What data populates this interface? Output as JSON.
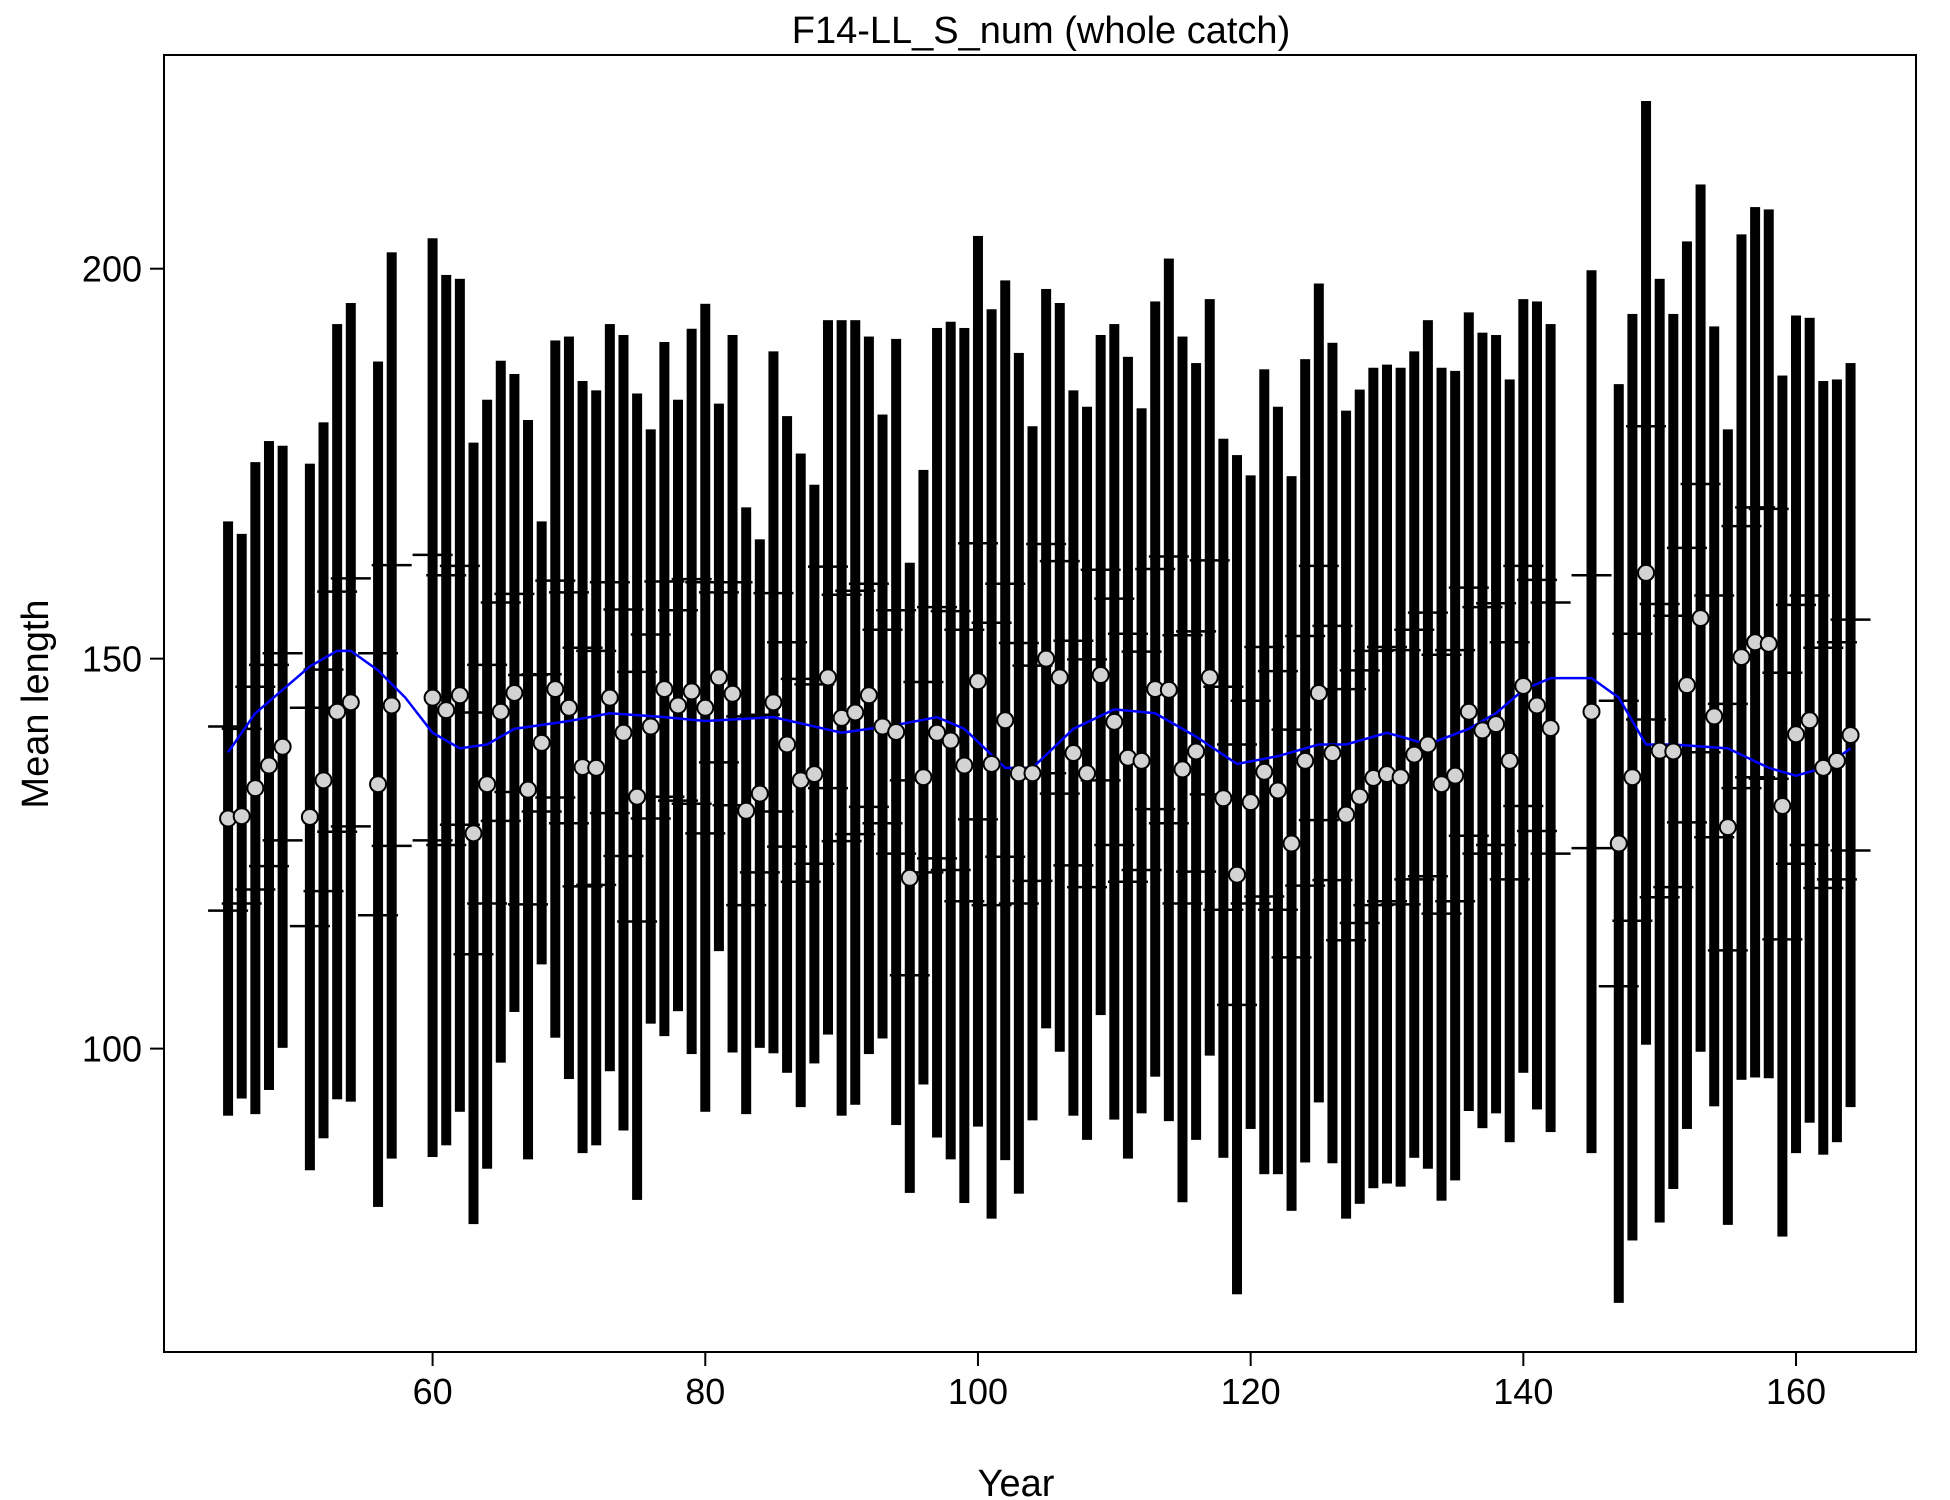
{
  "chart_data": {
    "type": "errorbar",
    "title": "F14-LL_S_num (whole catch)",
    "x_label": "Year",
    "y_label": "Mean length",
    "x": [
      45,
      46,
      47,
      48,
      49,
      51,
      52,
      53,
      54,
      56,
      57,
      60,
      61,
      62,
      63,
      64,
      65,
      66,
      67,
      68,
      69,
      70,
      71,
      72,
      73,
      74,
      75,
      76,
      77,
      78,
      79,
      80,
      81,
      82,
      83,
      84,
      85,
      86,
      87,
      88,
      89,
      90,
      91,
      92,
      93,
      94,
      95,
      96,
      97,
      98,
      99,
      100,
      101,
      102,
      103,
      104,
      105,
      106,
      107,
      108,
      109,
      110,
      111,
      112,
      113,
      114,
      115,
      116,
      117,
      118,
      119,
      120,
      121,
      122,
      123,
      124,
      125,
      126,
      127,
      128,
      129,
      130,
      131,
      132,
      133,
      134,
      135,
      136,
      137,
      138,
      139,
      140,
      141,
      142,
      145,
      147,
      148,
      149,
      150,
      151,
      152,
      153,
      154,
      155,
      156,
      157,
      158,
      159,
      160,
      161,
      162,
      163,
      164
    ],
    "values": [
      129.5,
      129.8,
      133.4,
      136.3,
      138.7,
      129.7,
      134.4,
      143.2,
      144.4,
      133.9,
      144.0,
      145.0,
      143.4,
      145.3,
      127.6,
      133.9,
      143.2,
      145.6,
      133.2,
      139.2,
      146.1,
      143.7,
      136.1,
      136.0,
      145.0,
      140.5,
      132.3,
      141.3,
      146.1,
      144.0,
      145.8,
      143.7,
      147.6,
      145.5,
      130.5,
      132.7,
      144.4,
      139.0,
      134.4,
      135.2,
      147.6,
      142.4,
      143.1,
      145.3,
      141.3,
      140.6,
      121.9,
      134.8,
      140.5,
      139.5,
      136.3,
      147.1,
      136.5,
      142.1,
      135.3,
      135.3,
      150.0,
      147.6,
      137.9,
      135.3,
      147.9,
      141.9,
      137.3,
      136.9,
      146.1,
      146.0,
      135.8,
      138.1,
      147.6,
      132.1,
      122.3,
      131.6,
      135.5,
      133.1,
      126.3,
      136.9,
      145.6,
      137.9,
      130.0,
      132.3,
      134.7,
      135.2,
      134.8,
      137.7,
      139.0,
      133.9,
      135.0,
      143.2,
      140.8,
      141.6,
      136.9,
      146.5,
      144.0,
      141.1,
      143.2,
      126.3,
      134.8,
      161.0,
      138.2,
      138.1,
      146.6,
      155.2,
      142.6,
      128.4,
      150.2,
      152.1,
      151.9,
      131.1,
      140.3,
      142.1,
      136.0,
      136.9,
      140.2
    ],
    "upper": [
      167.6,
      166.0,
      175.2,
      177.9,
      177.3,
      175.0,
      180.3,
      192.9,
      195.6,
      188.1,
      202.1,
      203.9,
      199.2,
      198.7,
      177.7,
      183.2,
      188.2,
      186.5,
      180.6,
      167.6,
      190.8,
      191.3,
      185.6,
      184.4,
      192.9,
      191.5,
      184.0,
      179.4,
      190.6,
      183.2,
      192.3,
      195.5,
      182.7,
      191.5,
      169.4,
      165.3,
      189.4,
      181.1,
      176.3,
      172.3,
      193.4,
      193.4,
      193.4,
      191.3,
      181.3,
      191.0,
      162.3,
      174.2,
      192.4,
      193.2,
      192.4,
      204.2,
      194.8,
      198.5,
      189.2,
      179.8,
      197.4,
      195.6,
      184.4,
      182.3,
      191.5,
      192.9,
      188.7,
      182.1,
      195.8,
      201.3,
      191.3,
      187.9,
      196.1,
      178.2,
      176.1,
      173.5,
      187.1,
      182.3,
      173.4,
      188.4,
      198.1,
      190.5,
      181.8,
      184.5,
      187.3,
      187.7,
      187.3,
      189.4,
      193.4,
      187.3,
      186.9,
      194.4,
      191.8,
      191.5,
      185.8,
      196.1,
      195.8,
      192.9,
      199.8,
      185.2,
      194.2,
      221.5,
      198.7,
      194.2,
      203.5,
      210.8,
      192.6,
      179.4,
      204.4,
      207.9,
      207.6,
      186.3,
      194.0,
      193.7,
      185.6,
      185.8,
      187.9
    ],
    "lower": [
      91.4,
      93.6,
      91.6,
      94.7,
      100.1,
      84.4,
      88.5,
      93.5,
      93.2,
      79.7,
      85.9,
      86.1,
      87.6,
      91.9,
      77.5,
      84.6,
      98.2,
      104.7,
      85.8,
      110.8,
      101.4,
      96.1,
      86.6,
      87.6,
      97.1,
      89.5,
      80.6,
      103.2,
      101.6,
      104.8,
      99.3,
      91.9,
      112.5,
      99.5,
      91.6,
      100.1,
      99.4,
      96.9,
      92.5,
      98.1,
      101.8,
      91.4,
      92.8,
      99.3,
      101.3,
      90.2,
      81.5,
      95.4,
      88.6,
      85.8,
      80.2,
      90.0,
      78.2,
      85.7,
      81.4,
      90.8,
      102.6,
      99.6,
      91.4,
      88.3,
      104.3,
      90.9,
      85.9,
      91.7,
      96.4,
      90.7,
      80.3,
      88.3,
      99.1,
      86.0,
      68.5,
      89.7,
      83.9,
      83.9,
      79.2,
      85.4,
      93.1,
      85.3,
      78.2,
      80.1,
      82.1,
      82.7,
      82.3,
      86.0,
      84.6,
      80.5,
      83.1,
      92.0,
      89.8,
      91.7,
      88.0,
      96.9,
      92.2,
      89.3,
      86.6,
      67.4,
      75.4,
      100.5,
      77.7,
      82.0,
      89.7,
      99.6,
      92.6,
      77.4,
      96.0,
      96.3,
      96.2,
      75.9,
      86.6,
      90.5,
      86.4,
      88.0,
      92.5
    ],
    "inner_upper": [
      141.3,
      141.0,
      146.4,
      149.2,
      150.7,
      143.7,
      148.6,
      158.6,
      160.3,
      150.7,
      162.0,
      163.3,
      160.7,
      161.9,
      143.1,
      149.2,
      157.2,
      158.3,
      147.9,
      148.0,
      160.0,
      158.5,
      151.4,
      151.0,
      159.8,
      156.3,
      148.3,
      153.1,
      159.9,
      156.2,
      160.2,
      159.8,
      158.5,
      159.8,
      142.6,
      142.8,
      158.4,
      152.1,
      147.4,
      146.7,
      161.8,
      158.2,
      158.7,
      159.6,
      153.7,
      156.2,
      134.4,
      147.0,
      156.6,
      156.1,
      153.7,
      164.8,
      154.6,
      159.6,
      152.0,
      149.1,
      164.7,
      162.5,
      152.3,
      149.9,
      161.4,
      157.7,
      153.2,
      150.9,
      161.5,
      163.1,
      153.0,
      153.5,
      162.6,
      146.4,
      139.0,
      144.6,
      151.5,
      148.4,
      140.9,
      152.9,
      161.9,
      154.2,
      146.1,
      148.5,
      151.0,
      151.5,
      151.1,
      153.7,
      155.9,
      150.5,
      151.1,
      159.1,
      156.6,
      157.1,
      152.1,
      161.9,
      160.1,
      157.2,
      160.7,
      144.6,
      153.2,
      179.8,
      157.0,
      155.5,
      164.2,
      172.4,
      158.1,
      144.2,
      167.0,
      169.4,
      169.2,
      148.2,
      156.9,
      158.1,
      151.4,
      152.1,
      155.0
    ],
    "inner_lower": [
      117.7,
      118.6,
      120.4,
      123.4,
      126.7,
      115.7,
      120.2,
      127.8,
      128.5,
      117.1,
      126.0,
      126.7,
      126.1,
      128.7,
      112.1,
      118.6,
      129.2,
      132.9,
      118.5,
      130.4,
      132.2,
      128.9,
      120.8,
      121.0,
      130.2,
      124.7,
      116.3,
      129.5,
      132.3,
      131.8,
      131.4,
      127.6,
      136.7,
      131.2,
      118.4,
      122.6,
      130.4,
      125.9,
      121.4,
      123.7,
      133.4,
      126.6,
      127.5,
      131.0,
      128.9,
      125.0,
      109.4,
      122.6,
      124.4,
      122.9,
      118.9,
      129.4,
      118.4,
      124.6,
      118.6,
      121.5,
      135.3,
      132.7,
      123.5,
      120.7,
      134.4,
      126.1,
      121.4,
      122.9,
      130.7,
      128.9,
      118.6,
      122.7,
      132.6,
      117.8,
      105.6,
      118.6,
      119.5,
      117.8,
      111.7,
      120.9,
      129.3,
      121.6,
      113.9,
      116.1,
      118.4,
      118.9,
      118.5,
      121.7,
      122.1,
      117.3,
      118.9,
      127.3,
      125.0,
      126.1,
      121.7,
      131.1,
      127.9,
      125.0,
      125.7,
      108.0,
      116.4,
      142.2,
      119.4,
      120.7,
      129.0,
      138.0,
      127.1,
      112.6,
      133.4,
      134.8,
      134.6,
      114.0,
      123.7,
      126.1,
      120.6,
      121.7,
      125.4
    ],
    "bar_color": "#000000",
    "point_color": "#d3d3d3",
    "smoother": {
      "x": [
        45,
        47,
        49,
        51,
        53,
        54,
        56,
        58,
        60,
        62,
        64,
        66,
        70,
        73,
        77,
        80,
        85,
        90,
        94,
        97,
        99,
        102,
        104,
        107,
        110,
        113,
        116,
        119,
        122,
        125,
        127,
        130,
        133,
        136,
        138,
        140,
        142,
        145,
        147,
        149,
        151,
        155,
        158,
        160,
        162,
        164
      ],
      "values": [
        138.0,
        143.0,
        146.0,
        149.0,
        151.0,
        151.0,
        148.5,
        145.0,
        140.5,
        138.5,
        139.0,
        141.0,
        142.0,
        143.0,
        142.5,
        142.0,
        142.5,
        140.5,
        141.5,
        142.5,
        141.0,
        136.0,
        136.0,
        141.0,
        143.5,
        143.0,
        140.0,
        136.5,
        137.5,
        139.0,
        139.0,
        140.5,
        139.0,
        141.0,
        143.0,
        146.0,
        147.5,
        147.5,
        145.0,
        139.0,
        139.0,
        138.5,
        136.0,
        135.0,
        136.0,
        138.5
      ],
      "color": "#0000ff"
    },
    "xlim": [
      40.3,
      168.8
    ],
    "ylim": [
      61.1,
      227.4
    ],
    "xticks": [
      60,
      80,
      100,
      120,
      140,
      160
    ],
    "yticks": [
      100,
      150,
      200
    ]
  }
}
